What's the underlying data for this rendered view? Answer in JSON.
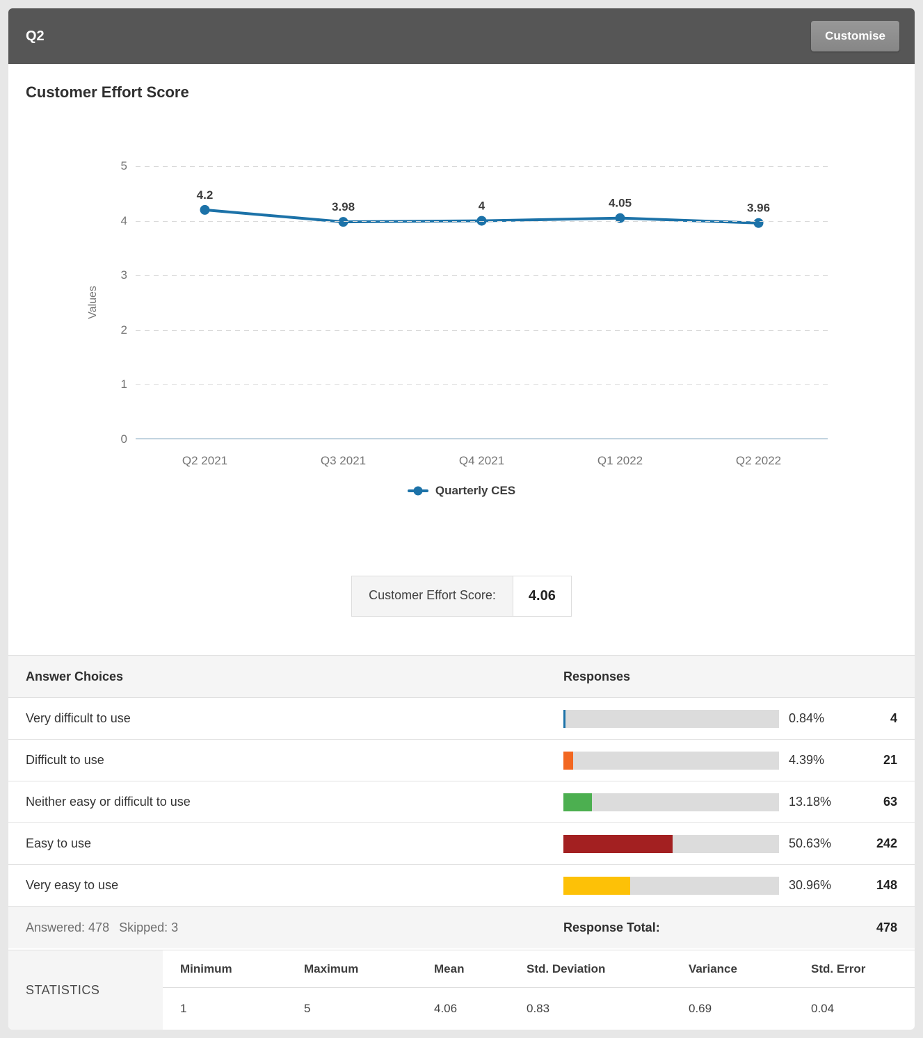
{
  "header": {
    "question_label": "Q2",
    "customise_label": "Customise"
  },
  "title": "Customer Effort Score",
  "chart_data": {
    "type": "line",
    "x": [
      "Q2 2021",
      "Q3 2021",
      "Q4 2021",
      "Q1 2022",
      "Q2 2022"
    ],
    "series": [
      {
        "name": "Quarterly CES",
        "values": [
          4.2,
          3.98,
          4,
          4.05,
          3.96
        ]
      }
    ],
    "point_labels": [
      "4.2",
      "3.98",
      "4",
      "4.05",
      "3.96"
    ],
    "title": "Customer Effort Score",
    "xlabel": "",
    "ylabel": "Values",
    "ylim": [
      0,
      5
    ],
    "yticks": [
      0,
      1,
      2,
      3,
      4,
      5
    ],
    "grid": "horizontal-dashed",
    "legend_position": "bottom",
    "legend": [
      "Quarterly CES"
    ],
    "line_color": "#1c72a8"
  },
  "score_box": {
    "label": "Customer Effort Score:",
    "value": "4.06"
  },
  "table": {
    "choices_header": "Answer Choices",
    "responses_header": "Responses",
    "rows": [
      {
        "label": "Very difficult to use",
        "percent": "0.84%",
        "pct": 0.84,
        "count": "4",
        "color": "#1c72a8"
      },
      {
        "label": "Difficult to use",
        "percent": "4.39%",
        "pct": 4.39,
        "count": "21",
        "color": "#f26721"
      },
      {
        "label": "Neither easy or difficult to use",
        "percent": "13.18%",
        "pct": 13.18,
        "count": "63",
        "color": "#4caf50"
      },
      {
        "label": "Easy to use",
        "percent": "50.63%",
        "pct": 50.63,
        "count": "242",
        "color": "#a32021"
      },
      {
        "label": "Very easy to use",
        "percent": "30.96%",
        "pct": 30.96,
        "count": "148",
        "color": "#fdc107"
      }
    ],
    "footer": {
      "answered_label": "Answered: 478",
      "skipped_label": "Skipped: 3",
      "total_label": "Response Total:",
      "total_value": "478"
    }
  },
  "statistics": {
    "label": "STATISTICS",
    "columns": [
      "Minimum",
      "Maximum",
      "Mean",
      "Std. Deviation",
      "Variance",
      "Std. Error"
    ],
    "values": [
      "1",
      "5",
      "4.06",
      "0.83",
      "0.69",
      "0.04"
    ]
  },
  "colors": {
    "header_bar": "#565656",
    "bar_track": "#dcdcdc",
    "line_series": "#1c72a8"
  }
}
